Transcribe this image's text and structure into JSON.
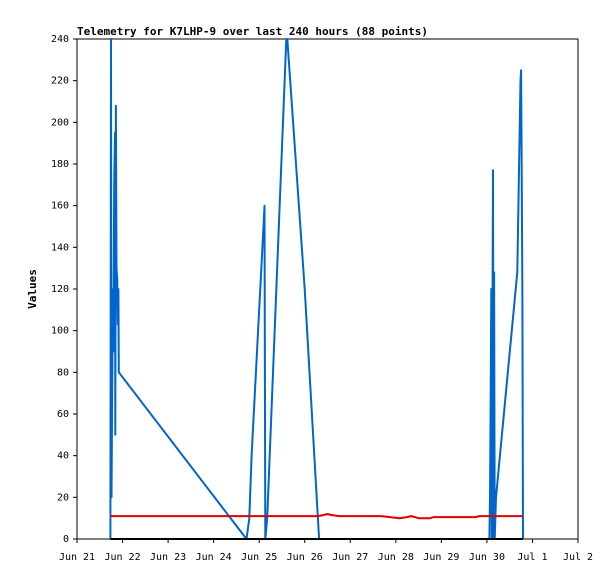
{
  "chart_data": {
    "type": "line",
    "title": "Telemetry for K7LHP-9 over last 240 hours (88 points)",
    "xlabel": "",
    "ylabel": "Values",
    "x_ticks": [
      "Jun 21",
      "Jun 22",
      "Jun 23",
      "Jun 24",
      "Jun 25",
      "Jun 26",
      "Jun 27",
      "Jun 28",
      "Jun 29",
      "Jun 30",
      "Jul 1",
      "Jul 2"
    ],
    "y_ticks": [
      0,
      20,
      40,
      60,
      80,
      100,
      120,
      140,
      160,
      180,
      200,
      220,
      240
    ],
    "xlim": [
      0,
      264
    ],
    "ylim": [
      0,
      240
    ],
    "grid": false,
    "legend": "none",
    "x_units": "hours since Jun 21 00:00",
    "series": [
      {
        "color": "#0066cc",
        "points": [
          [
            17.6,
            0
          ],
          [
            17.9,
            240
          ],
          [
            18.2,
            20
          ],
          [
            18.5,
            65
          ],
          [
            18.9,
            120
          ],
          [
            19.2,
            90
          ],
          [
            19.6,
            170
          ],
          [
            20.0,
            195
          ],
          [
            20.2,
            50
          ],
          [
            20.5,
            208
          ],
          [
            20.8,
            130
          ],
          [
            21.2,
            125
          ],
          [
            21.5,
            103
          ],
          [
            21.8,
            120
          ],
          [
            22.0,
            80
          ],
          [
            89.3,
            0
          ],
          [
            90.8,
            10
          ],
          [
            92.0,
            40
          ],
          [
            98.3,
            150
          ],
          [
            98.8,
            160
          ],
          [
            99.2,
            0
          ],
          [
            100.2,
            10
          ],
          [
            110.3,
            240
          ],
          [
            110.8,
            240
          ],
          [
            120.0,
            120
          ],
          [
            127.6,
            0
          ],
          [
            217.3,
            0
          ],
          [
            217.7,
            25
          ],
          [
            218.0,
            70
          ],
          [
            218.3,
            120
          ],
          [
            218.6,
            0
          ],
          [
            218.9,
            95
          ],
          [
            219.2,
            177
          ],
          [
            219.5,
            0
          ],
          [
            219.8,
            128
          ],
          [
            220.1,
            0
          ],
          [
            220.8,
            20
          ],
          [
            232.0,
            128
          ],
          [
            233.7,
            220
          ],
          [
            234.0,
            225
          ],
          [
            234.3,
            185
          ],
          [
            234.7,
            115
          ],
          [
            235.0,
            0
          ]
        ]
      },
      {
        "color": "#dd0000",
        "points": [
          [
            17.6,
            11
          ],
          [
            127.0,
            11
          ],
          [
            130.0,
            11.5
          ],
          [
            132.0,
            12
          ],
          [
            134.0,
            11.5
          ],
          [
            138.0,
            11
          ],
          [
            160.0,
            11
          ],
          [
            165.0,
            10.5
          ],
          [
            170.0,
            10
          ],
          [
            174.0,
            10.5
          ],
          [
            176.0,
            11
          ],
          [
            178.0,
            10.5
          ],
          [
            180.0,
            10
          ],
          [
            186.0,
            10
          ],
          [
            188.0,
            10.5
          ],
          [
            210.0,
            10.5
          ],
          [
            212.0,
            11
          ],
          [
            235.0,
            11
          ]
        ]
      },
      {
        "color": "#000000",
        "points": [
          [
            17.6,
            0
          ],
          [
            235.0,
            0
          ]
        ]
      }
    ]
  }
}
